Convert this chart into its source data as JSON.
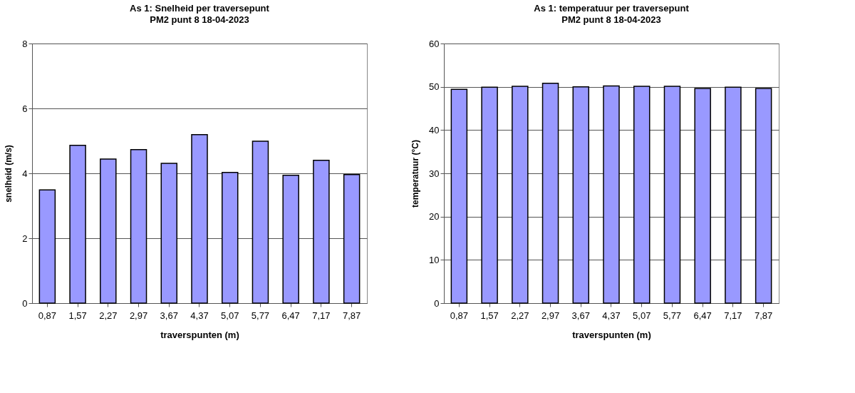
{
  "chart_data": [
    {
      "type": "bar",
      "title": "As 1: Snelheid  per traversepunt",
      "subtitle": "PM2 punt 8 18-04-2023",
      "xlabel": "traverspunten (m)",
      "ylabel": "snelheid (m/s)",
      "categories": [
        "0,87",
        "1,57",
        "2,27",
        "2,97",
        "3,67",
        "4,37",
        "5,07",
        "5,77",
        "6,47",
        "7,17",
        "7,87"
      ],
      "values": [
        3.49,
        4.86,
        4.44,
        4.73,
        4.31,
        5.19,
        4.03,
        4.99,
        3.94,
        4.4,
        3.96
      ],
      "color": "#9999ff",
      "ylim": [
        0,
        8
      ],
      "yticks": [
        0,
        2,
        4,
        6,
        8
      ],
      "grid": "y"
    },
    {
      "type": "bar",
      "title": "As 1: temperatuur per traversepunt",
      "subtitle": "PM2 punt 8 18-04-2023",
      "xlabel": "traverspunten (m)",
      "ylabel": "temperatuur (°C)",
      "categories": [
        "0,87",
        "1,57",
        "2,27",
        "2,97",
        "3,67",
        "4,37",
        "5,07",
        "5,77",
        "6,47",
        "7,17",
        "7,87"
      ],
      "values": [
        49.4,
        49.9,
        50.1,
        50.8,
        50.0,
        50.2,
        50.1,
        50.1,
        49.6,
        49.9,
        49.6
      ],
      "color": "#9999ff",
      "ylim": [
        0,
        60
      ],
      "yticks": [
        0,
        10,
        20,
        30,
        40,
        50,
        60
      ],
      "grid": "y"
    }
  ]
}
